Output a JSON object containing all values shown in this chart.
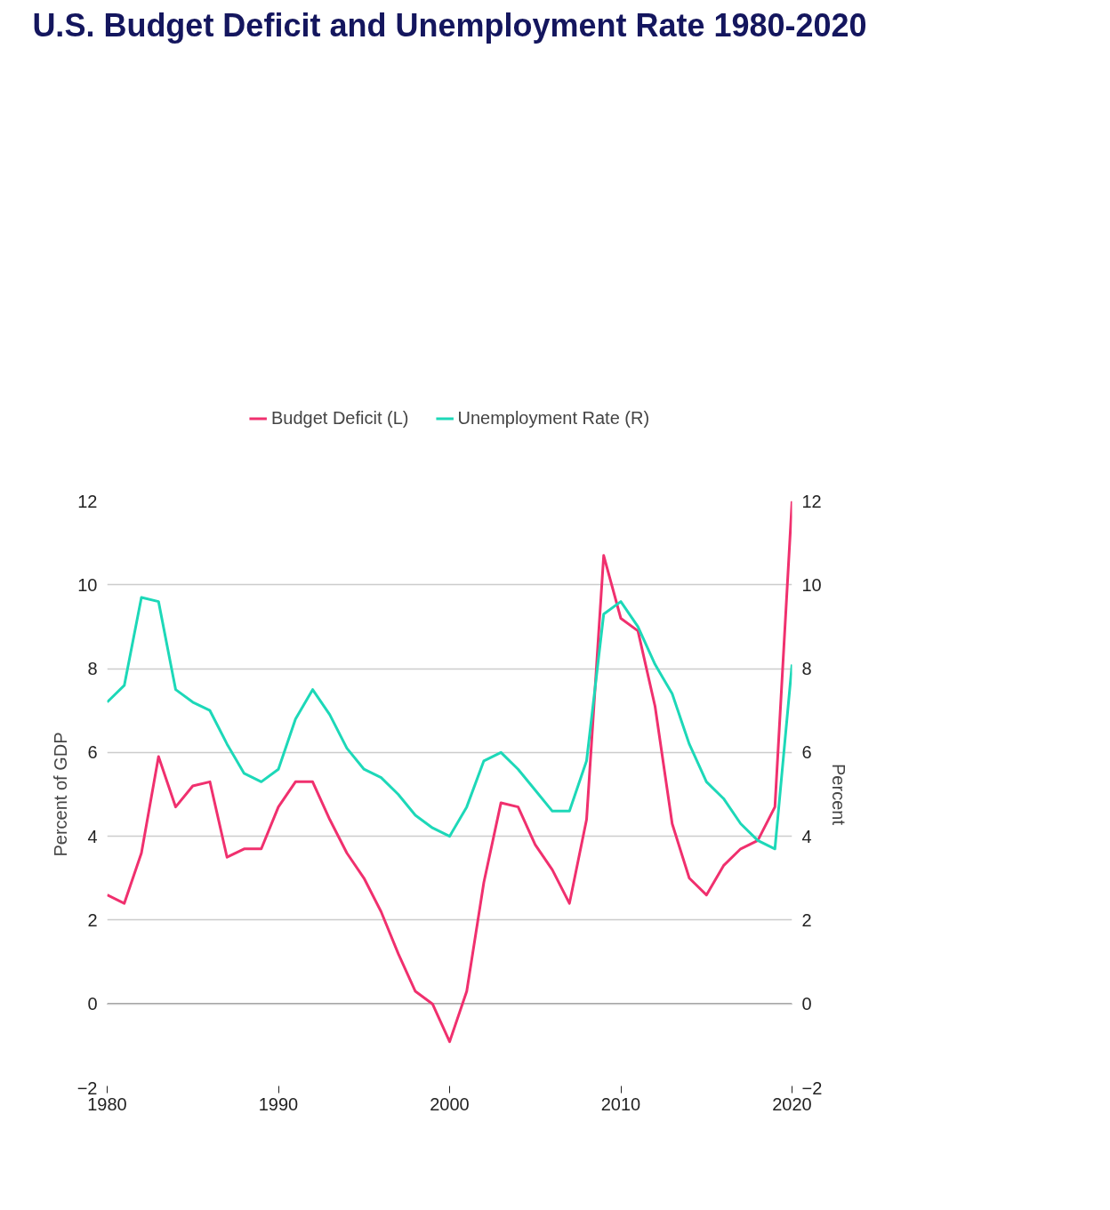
{
  "chart_data": {
    "type": "line",
    "title": "U.S. Budget Deficit and Unemployment Rate 1980-2020",
    "ylabel": "Percent of GDP",
    "y2label": "Percent",
    "x": [
      1980,
      1981,
      1982,
      1983,
      1984,
      1985,
      1986,
      1987,
      1988,
      1989,
      1990,
      1991,
      1992,
      1993,
      1994,
      1995,
      1996,
      1997,
      1998,
      1999,
      2000,
      2001,
      2002,
      2003,
      2004,
      2005,
      2006,
      2007,
      2008,
      2009,
      2010,
      2011,
      2012,
      2013,
      2014,
      2015,
      2016,
      2017,
      2018,
      2019,
      2020
    ],
    "series": [
      {
        "name": "Budget Deficit (L)",
        "color": "#f0306e",
        "values": [
          2.6,
          2.4,
          3.6,
          5.9,
          4.7,
          5.2,
          5.3,
          3.5,
          3.7,
          3.7,
          4.7,
          5.3,
          5.3,
          4.4,
          3.6,
          3.0,
          2.2,
          1.2,
          0.3,
          0.0,
          -0.9,
          0.3,
          2.9,
          4.8,
          4.7,
          3.8,
          3.2,
          2.4,
          4.4,
          10.7,
          9.2,
          8.9,
          7.1,
          4.3,
          3.0,
          2.6,
          3.3,
          3.7,
          3.9,
          4.7,
          12
        ]
      },
      {
        "name": "Unemployment Rate (R)",
        "color": "#1dd8b8",
        "axis": "y2",
        "values": [
          7.2,
          7.6,
          9.7,
          9.6,
          7.5,
          7.2,
          7.0,
          6.2,
          5.5,
          5.3,
          5.6,
          6.8,
          7.5,
          6.9,
          6.1,
          5.6,
          5.4,
          5.0,
          4.5,
          4.2,
          4.0,
          4.7,
          5.8,
          6.0,
          5.6,
          5.1,
          4.6,
          4.6,
          5.8,
          9.3,
          9.6,
          9.0,
          8.1,
          7.4,
          6.2,
          5.3,
          4.9,
          4.3,
          3.9,
          3.7,
          8.1
        ]
      }
    ],
    "xlim": [
      1980,
      2020
    ],
    "xticks": [
      1980,
      1990,
      2000,
      2010,
      2020
    ],
    "ylim": [
      -2,
      12
    ],
    "yticks": [
      -2,
      0,
      2,
      4,
      6,
      8,
      10,
      12
    ],
    "y2lim": [
      -2,
      12
    ],
    "y2ticks": [
      -2,
      0,
      2,
      4,
      6,
      8,
      10,
      12
    ],
    "ref_lines": [
      {
        "axis": "y",
        "value": 0,
        "color": "#333333"
      }
    ],
    "grid": "y",
    "legend": "top",
    "line_style": "solid"
  }
}
